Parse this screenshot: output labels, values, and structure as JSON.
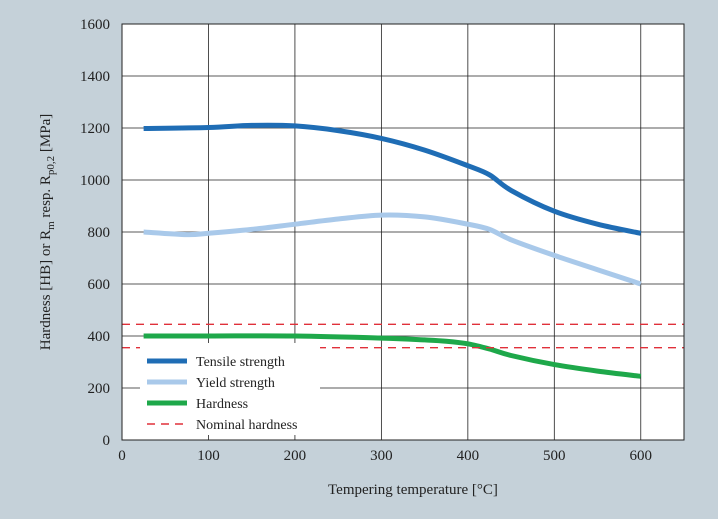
{
  "chart_data": {
    "type": "line",
    "title": "",
    "xlabel": "Tempering temperature [°C]",
    "ylabel": {
      "prefix": "Hardness [HB] or R",
      "sub1": "m",
      "mid": " resp. R",
      "sub2": "p0,2",
      "suffix": " [MPa]"
    },
    "xlim": [
      0,
      650
    ],
    "ylim": [
      0,
      1600
    ],
    "xticks": [
      0,
      100,
      200,
      300,
      400,
      500,
      600
    ],
    "yticks": [
      0,
      200,
      400,
      600,
      800,
      1000,
      1200,
      1400,
      1600
    ],
    "grid": true,
    "legend_position": "bottom-left",
    "series": [
      {
        "name": "Tensile strength",
        "color": "#1f6db5",
        "style": "solid",
        "x": [
          25,
          100,
          150,
          200,
          250,
          300,
          350,
          400,
          425,
          450,
          500,
          550,
          600
        ],
        "y": [
          1198,
          1202,
          1210,
          1208,
          1190,
          1160,
          1115,
          1055,
          1020,
          960,
          880,
          830,
          795
        ]
      },
      {
        "name": "Yield strength",
        "color": "#a9c9ea",
        "style": "solid",
        "x": [
          25,
          75,
          100,
          150,
          200,
          250,
          300,
          350,
          400,
          425,
          450,
          500,
          550,
          600
        ],
        "y": [
          800,
          790,
          795,
          810,
          830,
          850,
          865,
          858,
          830,
          810,
          770,
          710,
          655,
          600
        ]
      },
      {
        "name": "Hardness",
        "color": "#1ea84a",
        "style": "solid",
        "x": [
          25,
          100,
          200,
          300,
          350,
          375,
          400,
          425,
          450,
          500,
          550,
          600
        ],
        "y": [
          400,
          400,
          400,
          392,
          385,
          380,
          370,
          350,
          325,
          290,
          265,
          245
        ]
      },
      {
        "name": "Nominal hardness",
        "color": "#e0303a",
        "style": "dashed",
        "hlines": [
          445,
          355
        ]
      }
    ]
  }
}
